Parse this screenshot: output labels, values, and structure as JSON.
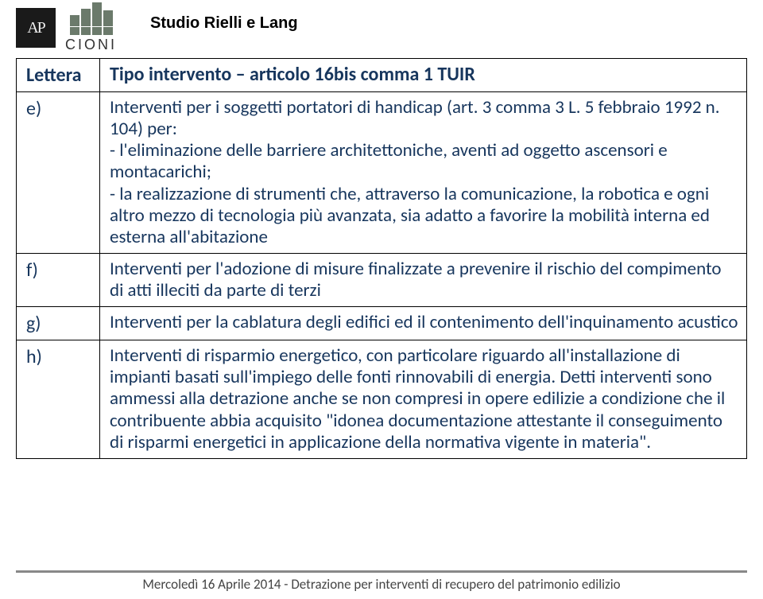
{
  "header": {
    "ap_logo_text": "AP",
    "cioni_text": "CIONI",
    "studio_title": "Studio Rielli e Lang"
  },
  "table": {
    "head_letter": "Lettera",
    "head_type": "Tipo intervento – articolo 16bis comma 1 TUIR",
    "rows": [
      {
        "letter": "e)",
        "body": "Interventi per i soggetti portatori di handicap (art. 3 comma 3 L. 5 febbraio 1992 n. 104) per:\n- l'eliminazione delle barriere architettoniche, aventi ad oggetto ascensori e montacarichi;\n- la realizzazione di strumenti che, attraverso la comunicazione, la robotica e ogni altro mezzo di tecnologia più avanzata, sia adatto a favorire la mobilità interna ed esterna all'abitazione"
      },
      {
        "letter": "f)",
        "body": "Interventi per l'adozione di misure finalizzate a prevenire il rischio del compimento di atti illeciti da parte di terzi"
      },
      {
        "letter": "g)",
        "body": "Interventi per la cablatura degli edifici ed il contenimento dell'inquinamento acustico"
      },
      {
        "letter": "h)",
        "body": "Interventi di risparmio energetico, con particolare riguardo all'installazione di impianti basati sull'impiego delle fonti rinnovabili di energia. Detti interventi sono ammessi alla detrazione anche se non compresi in opere edilizie a condizione che il contribuente abbia acquisito \"idonea documentazione attestante il conseguimento di risparmi energetici in applicazione della normativa vigente in materia\"."
      }
    ]
  },
  "footer": "Mercoledì 16 Aprile 2014 - Detrazione per interventi di recupero del patrimonio edilizio"
}
